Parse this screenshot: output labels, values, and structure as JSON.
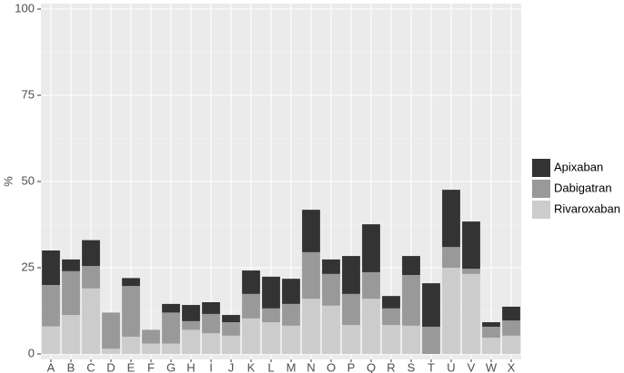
{
  "chart_data": {
    "type": "stacked-bar",
    "y_label": "%",
    "categories": [
      "A",
      "B",
      "C",
      "D",
      "E",
      "F",
      "G",
      "H",
      "I",
      "J",
      "K",
      "L",
      "M",
      "N",
      "O",
      "P",
      "Q",
      "R",
      "S",
      "T",
      "U",
      "V",
      "W",
      "X"
    ],
    "series": [
      {
        "name": "Apixaban",
        "color": "#333333",
        "values": [
          10,
          3.4,
          7.5,
          0,
          2.3,
          0,
          2.5,
          4.7,
          3.4,
          2.1,
          6.8,
          9.2,
          7.3,
          12.3,
          4.2,
          11,
          13.9,
          3.6,
          5.5,
          12.6,
          16.6,
          13.7,
          1.3,
          4
        ]
      },
      {
        "name": "Dabigatran",
        "color": "#999999",
        "values": [
          12,
          12.7,
          6.5,
          10.5,
          14.7,
          4,
          9,
          2.5,
          5.6,
          3.9,
          7.1,
          4,
          6.3,
          13.5,
          9.2,
          9,
          7.7,
          4.8,
          14.7,
          7.9,
          6,
          1.5,
          3.2,
          4.4
        ]
      },
      {
        "name": "Rivaroxaban",
        "color": "#cccccc",
        "values": [
          8,
          11.3,
          19,
          1.5,
          5,
          3,
          3,
          7,
          6,
          5.3,
          10.3,
          9.2,
          8.2,
          16,
          14,
          8.4,
          16,
          8.4,
          8.2,
          0,
          25,
          23.2,
          4.7,
          5.3
        ]
      }
    ],
    "ylim": [
      0,
      100
    ],
    "yticks": [
      0,
      25,
      50,
      75,
      100
    ],
    "grid": true,
    "legend": "right"
  }
}
